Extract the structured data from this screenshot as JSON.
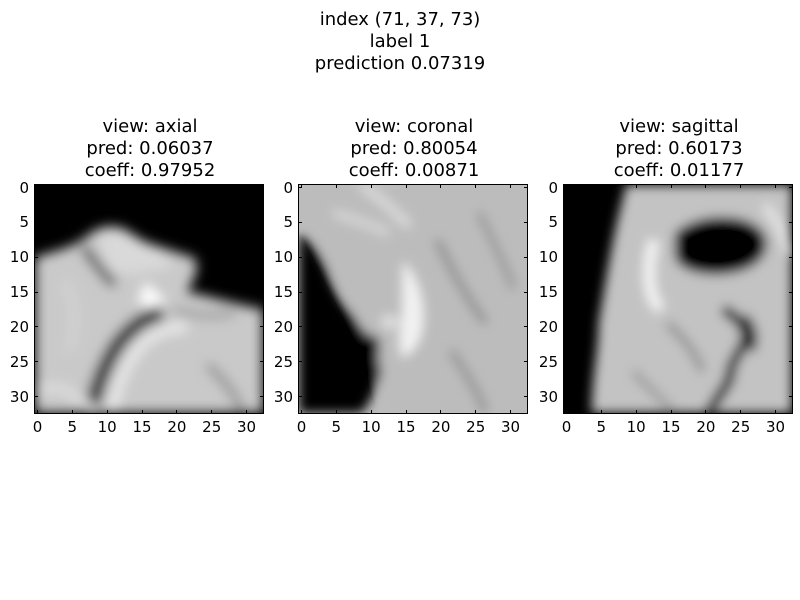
{
  "figure": {
    "suptitle_lines": [
      "index (71, 37, 73)",
      "label 1",
      "prediction 0.07319"
    ]
  },
  "chart_data": [
    {
      "type": "heatmap",
      "colormap": "gray",
      "title_lines": [
        "view: axial",
        "pred: 0.06037",
        "coeff: 0.97952"
      ],
      "xlim": [
        -0.5,
        32.5
      ],
      "ylim": [
        32.5,
        -0.5
      ],
      "xticks": [
        0,
        5,
        10,
        15,
        20,
        25,
        30
      ],
      "yticks": [
        0,
        5,
        10,
        15,
        20,
        25,
        30
      ],
      "grid": false
    },
    {
      "type": "heatmap",
      "colormap": "gray",
      "title_lines": [
        "view: coronal",
        "pred: 0.80054",
        "coeff: 0.00871"
      ],
      "xlim": [
        -0.5,
        32.5
      ],
      "ylim": [
        32.5,
        -0.5
      ],
      "xticks": [
        0,
        5,
        10,
        15,
        20,
        25,
        30
      ],
      "yticks": [
        0,
        5,
        10,
        15,
        20,
        25,
        30
      ],
      "grid": false
    },
    {
      "type": "heatmap",
      "colormap": "gray",
      "title_lines": [
        "view: sagittal",
        "pred: 0.60173",
        "coeff: 0.01177"
      ],
      "xlim": [
        -0.5,
        32.5
      ],
      "ylim": [
        32.5,
        -0.5
      ],
      "xticks": [
        0,
        5,
        10,
        15,
        20,
        25,
        30
      ],
      "yticks": [
        0,
        5,
        10,
        15,
        20,
        25,
        30
      ],
      "grid": false
    }
  ]
}
